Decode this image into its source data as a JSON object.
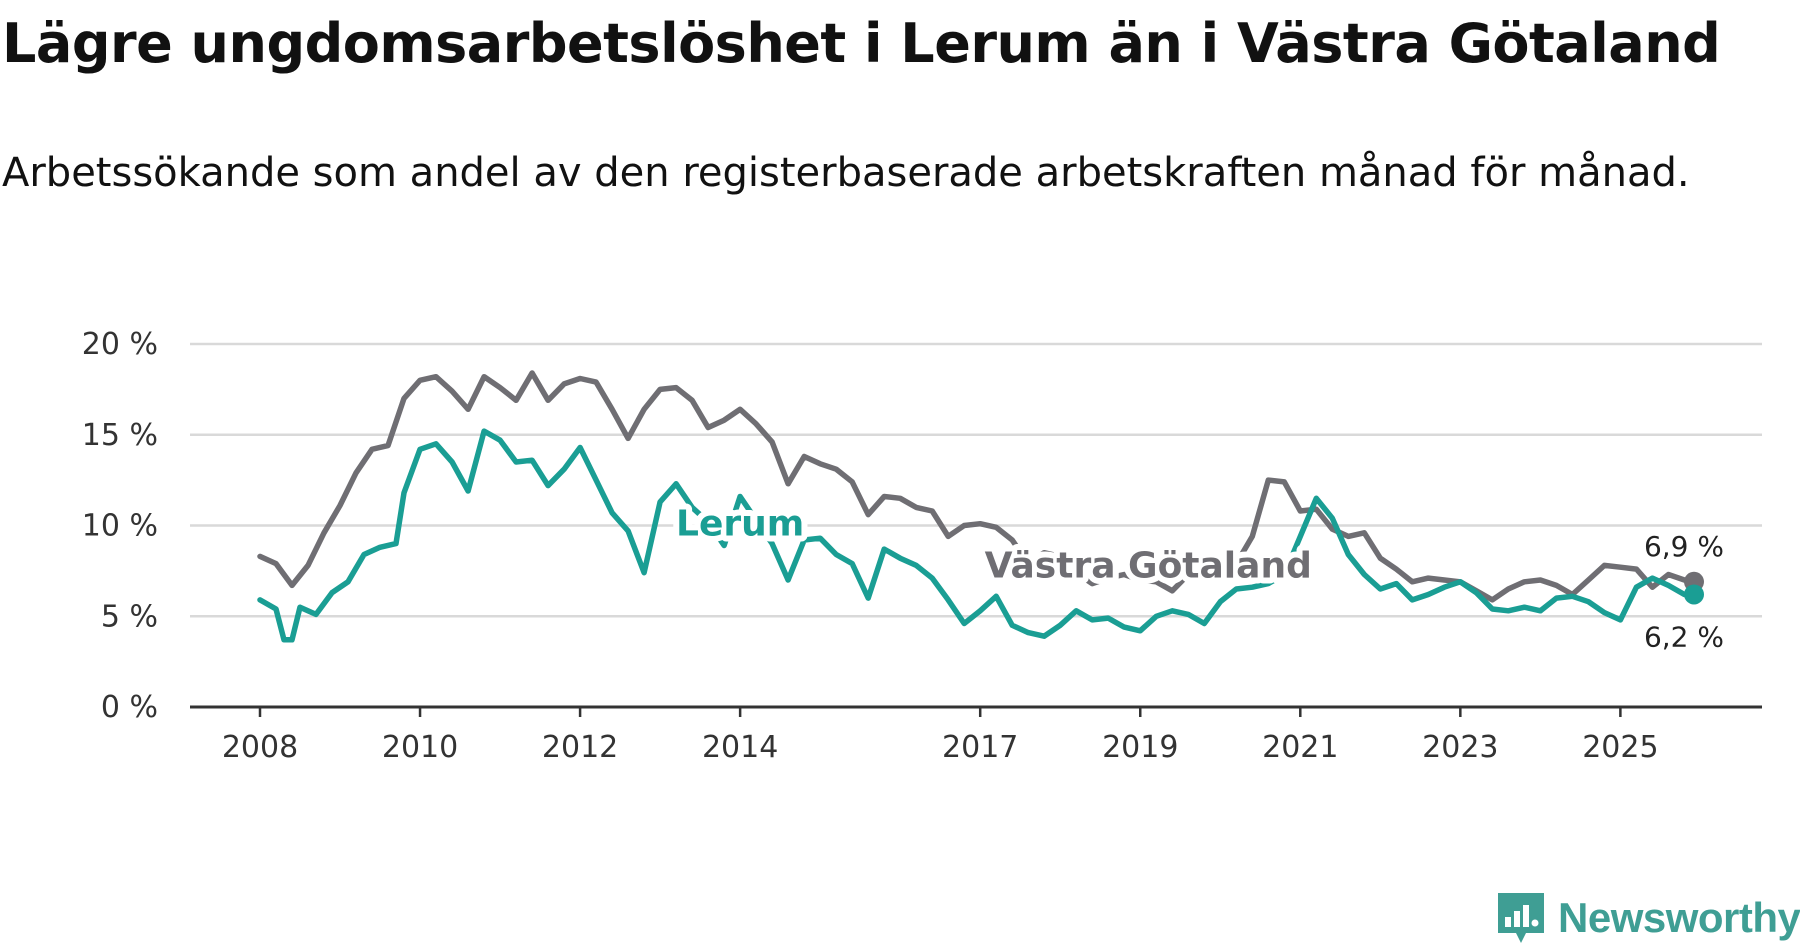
{
  "title": "Lägre ungdomsarbetslöshet i Lerum än i Västra Götaland",
  "subtitle": "Arbetssökande som andel av den registerbaserade arbetskraften månad för månad.",
  "brand": {
    "name": "Newsworthy",
    "icon": "newsworthy-logo-icon",
    "color": "#3f9e94"
  },
  "chart_data": {
    "type": "line",
    "title": "Lägre ungdomsarbetslöshet i Lerum än i Västra Götaland",
    "xlabel": "",
    "ylabel": "",
    "ylim": [
      0,
      20
    ],
    "xlim": [
      2008.0,
      2025.92
    ],
    "y_ticks": [
      0,
      5,
      10,
      15,
      20
    ],
    "y_tick_labels": [
      "0 %",
      "5 %",
      "10 %",
      "15 %",
      "20 %"
    ],
    "x_ticks": [
      2008,
      2010,
      2012,
      2014,
      2017,
      2019,
      2021,
      2023,
      2025
    ],
    "x_tick_labels": [
      "2008",
      "2010",
      "2012",
      "2014",
      "2017",
      "2019",
      "2021",
      "2023",
      "2025"
    ],
    "grid": true,
    "series": [
      {
        "name": "Västra Götaland",
        "color": "#6f6e73",
        "label_at": [
          2012.8,
          7.8
        ],
        "end_label": "6,9 %",
        "points": [
          [
            2008.0,
            8.3
          ],
          [
            2008.2,
            7.9
          ],
          [
            2008.4,
            6.7
          ],
          [
            2008.6,
            7.8
          ],
          [
            2008.8,
            9.6
          ],
          [
            2009.0,
            11.1
          ],
          [
            2009.2,
            12.9
          ],
          [
            2009.4,
            14.2
          ],
          [
            2009.6,
            14.4
          ],
          [
            2009.8,
            17.0
          ],
          [
            2010.0,
            18.0
          ],
          [
            2010.2,
            18.2
          ],
          [
            2010.4,
            17.4
          ],
          [
            2010.6,
            16.4
          ],
          [
            2010.8,
            18.2
          ],
          [
            2011.0,
            17.6
          ],
          [
            2011.2,
            16.9
          ],
          [
            2011.4,
            18.4
          ],
          [
            2011.6,
            16.9
          ],
          [
            2011.8,
            17.8
          ],
          [
            2012.0,
            18.1
          ],
          [
            2012.2,
            17.9
          ],
          [
            2012.4,
            16.4
          ],
          [
            2012.6,
            14.8
          ],
          [
            2012.8,
            16.4
          ],
          [
            2013.0,
            17.5
          ],
          [
            2013.2,
            17.6
          ],
          [
            2013.4,
            16.9
          ],
          [
            2013.6,
            15.4
          ],
          [
            2013.8,
            15.8
          ],
          [
            2014.0,
            16.4
          ],
          [
            2014.2,
            15.6
          ],
          [
            2014.4,
            14.6
          ],
          [
            2014.6,
            12.3
          ],
          [
            2014.8,
            13.8
          ],
          [
            2015.0,
            13.4
          ],
          [
            2015.2,
            13.1
          ],
          [
            2015.4,
            12.4
          ],
          [
            2015.6,
            10.6
          ],
          [
            2015.8,
            11.6
          ],
          [
            2016.0,
            11.5
          ],
          [
            2016.2,
            11.0
          ],
          [
            2016.4,
            10.8
          ],
          [
            2016.6,
            9.4
          ],
          [
            2016.8,
            10.0
          ],
          [
            2017.0,
            10.1
          ],
          [
            2017.2,
            9.9
          ],
          [
            2017.4,
            9.2
          ],
          [
            2017.6,
            7.9
          ],
          [
            2017.8,
            8.5
          ],
          [
            2018.0,
            8.3
          ],
          [
            2018.2,
            7.4
          ],
          [
            2018.4,
            6.8
          ],
          [
            2018.6,
            7.1
          ],
          [
            2018.8,
            7.3
          ],
          [
            2019.0,
            7.0
          ],
          [
            2019.2,
            6.9
          ],
          [
            2019.4,
            6.4
          ],
          [
            2019.6,
            7.3
          ],
          [
            2019.8,
            7.8
          ],
          [
            2020.0,
            7.6
          ],
          [
            2020.2,
            7.9
          ],
          [
            2020.4,
            9.4
          ],
          [
            2020.6,
            12.5
          ],
          [
            2020.8,
            12.4
          ],
          [
            2021.0,
            10.8
          ],
          [
            2021.2,
            10.9
          ],
          [
            2021.4,
            9.8
          ],
          [
            2021.6,
            9.4
          ],
          [
            2021.8,
            9.6
          ],
          [
            2022.0,
            8.2
          ],
          [
            2022.2,
            7.6
          ],
          [
            2022.4,
            6.9
          ],
          [
            2022.6,
            7.1
          ],
          [
            2022.8,
            7.0
          ],
          [
            2023.0,
            6.9
          ],
          [
            2023.2,
            6.4
          ],
          [
            2023.4,
            5.9
          ],
          [
            2023.6,
            6.5
          ],
          [
            2023.8,
            6.9
          ],
          [
            2024.0,
            7.0
          ],
          [
            2024.2,
            6.7
          ],
          [
            2024.4,
            6.2
          ],
          [
            2024.6,
            7.0
          ],
          [
            2024.8,
            7.8
          ],
          [
            2025.0,
            7.7
          ],
          [
            2025.2,
            7.6
          ],
          [
            2025.4,
            6.6
          ],
          [
            2025.6,
            7.3
          ],
          [
            2025.8,
            7.0
          ],
          [
            2025.92,
            6.9
          ]
        ]
      },
      {
        "name": "Lerum",
        "color": "#1a9e94",
        "label_at": [
          2012.9,
          10.2
        ],
        "end_label": "6,2 %",
        "points": [
          [
            2008.0,
            5.9
          ],
          [
            2008.2,
            5.4
          ],
          [
            2008.3,
            3.7
          ],
          [
            2008.4,
            3.7
          ],
          [
            2008.5,
            5.5
          ],
          [
            2008.7,
            5.1
          ],
          [
            2008.9,
            6.3
          ],
          [
            2009.1,
            6.9
          ],
          [
            2009.3,
            8.4
          ],
          [
            2009.5,
            8.8
          ],
          [
            2009.7,
            9.0
          ],
          [
            2009.8,
            11.8
          ],
          [
            2010.0,
            14.2
          ],
          [
            2010.2,
            14.5
          ],
          [
            2010.4,
            13.5
          ],
          [
            2010.6,
            11.9
          ],
          [
            2010.8,
            15.2
          ],
          [
            2011.0,
            14.7
          ],
          [
            2011.2,
            13.5
          ],
          [
            2011.4,
            13.6
          ],
          [
            2011.6,
            12.2
          ],
          [
            2011.8,
            13.1
          ],
          [
            2012.0,
            14.3
          ],
          [
            2012.2,
            12.5
          ],
          [
            2012.4,
            10.7
          ],
          [
            2012.6,
            9.7
          ],
          [
            2012.8,
            7.4
          ],
          [
            2013.0,
            11.3
          ],
          [
            2013.2,
            12.3
          ],
          [
            2013.4,
            11.0
          ],
          [
            2013.6,
            10.2
          ],
          [
            2013.8,
            8.9
          ],
          [
            2014.0,
            11.6
          ],
          [
            2014.2,
            10.3
          ],
          [
            2014.4,
            9.0
          ],
          [
            2014.6,
            7.0
          ],
          [
            2014.8,
            9.2
          ],
          [
            2015.0,
            9.3
          ],
          [
            2015.2,
            8.4
          ],
          [
            2015.4,
            7.9
          ],
          [
            2015.6,
            6.0
          ],
          [
            2015.8,
            8.7
          ],
          [
            2016.0,
            8.2
          ],
          [
            2016.2,
            7.8
          ],
          [
            2016.4,
            7.1
          ],
          [
            2016.6,
            5.9
          ],
          [
            2016.8,
            4.6
          ],
          [
            2017.0,
            5.3
          ],
          [
            2017.2,
            6.1
          ],
          [
            2017.4,
            4.5
          ],
          [
            2017.6,
            4.1
          ],
          [
            2017.8,
            3.9
          ],
          [
            2018.0,
            4.5
          ],
          [
            2018.2,
            5.3
          ],
          [
            2018.4,
            4.8
          ],
          [
            2018.6,
            4.9
          ],
          [
            2018.8,
            4.4
          ],
          [
            2019.0,
            4.2
          ],
          [
            2019.2,
            5.0
          ],
          [
            2019.4,
            5.3
          ],
          [
            2019.6,
            5.1
          ],
          [
            2019.8,
            4.6
          ],
          [
            2020.0,
            5.8
          ],
          [
            2020.2,
            6.5
          ],
          [
            2020.4,
            6.6
          ],
          [
            2020.6,
            6.8
          ],
          [
            2020.8,
            7.3
          ],
          [
            2021.0,
            9.4
          ],
          [
            2021.2,
            11.5
          ],
          [
            2021.4,
            10.4
          ],
          [
            2021.6,
            8.4
          ],
          [
            2021.8,
            7.3
          ],
          [
            2022.0,
            6.5
          ],
          [
            2022.2,
            6.8
          ],
          [
            2022.4,
            5.9
          ],
          [
            2022.6,
            6.2
          ],
          [
            2022.8,
            6.6
          ],
          [
            2023.0,
            6.9
          ],
          [
            2023.2,
            6.3
          ],
          [
            2023.4,
            5.4
          ],
          [
            2023.6,
            5.3
          ],
          [
            2023.8,
            5.5
          ],
          [
            2024.0,
            5.3
          ],
          [
            2024.2,
            6.0
          ],
          [
            2024.4,
            6.1
          ],
          [
            2024.6,
            5.8
          ],
          [
            2024.8,
            5.2
          ],
          [
            2025.0,
            4.8
          ],
          [
            2025.2,
            6.6
          ],
          [
            2025.4,
            7.1
          ],
          [
            2025.6,
            6.7
          ],
          [
            2025.8,
            6.2
          ],
          [
            2025.92,
            6.2
          ]
        ]
      }
    ]
  }
}
